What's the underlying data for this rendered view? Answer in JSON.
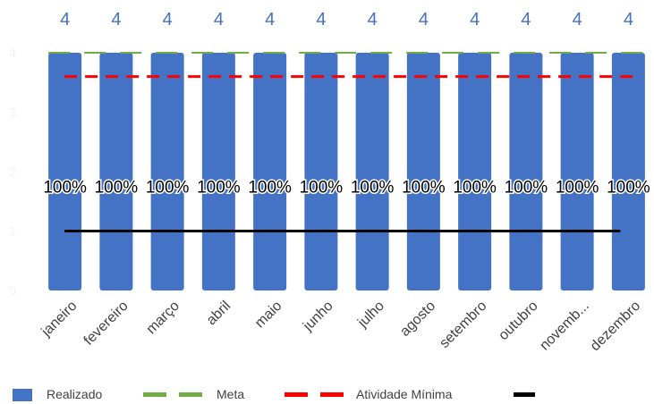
{
  "chart_data": {
    "type": "bar",
    "categories": [
      "janeiro",
      "fevereiro",
      "março",
      "abril",
      "maio",
      "junho",
      "julho",
      "agosto",
      "setembro",
      "outubro",
      "novemb...",
      "dezembro"
    ],
    "series": [
      {
        "name": "Realizado",
        "kind": "bar",
        "color": "#4472C4",
        "values": [
          4,
          4,
          4,
          4,
          4,
          4,
          4,
          4,
          4,
          4,
          4,
          4
        ]
      },
      {
        "name": "Meta",
        "kind": "line-dashed",
        "color": "#70AD47",
        "values": [
          4,
          4,
          4,
          4,
          4,
          4,
          4,
          4,
          4,
          4,
          4,
          4
        ]
      },
      {
        "name": "Atividade Mínima",
        "kind": "line-dashed",
        "color": "#FF0000",
        "values": [
          3.6,
          3.6,
          3.6,
          3.6,
          3.6,
          3.6,
          3.6,
          3.6,
          3.6,
          3.6,
          3.6,
          3.6
        ]
      },
      {
        "name": "",
        "kind": "line",
        "color": "#000000",
        "values": [
          1,
          1,
          1,
          1,
          1,
          1,
          1,
          1,
          1,
          1,
          1,
          1
        ]
      }
    ],
    "top_labels": [
      "4",
      "4",
      "4",
      "4",
      "4",
      "4",
      "4",
      "4",
      "4",
      "4",
      "4",
      "4"
    ],
    "percent_labels": [
      "100%",
      "100%",
      "100%",
      "100%",
      "100%",
      "100%",
      "100%",
      "100%",
      "100%",
      "100%",
      "100%",
      "100%"
    ],
    "percent_label_level": 1.65,
    "y_ticks": [
      "0",
      "1",
      "2",
      "3",
      "4"
    ],
    "ylim": [
      0,
      4
    ],
    "grid": false,
    "legend_position": "bottom",
    "colors": {
      "top_label": "#4472C4",
      "axis_tick": "#F2F2F2",
      "category_label": "#404040"
    }
  },
  "legend": {
    "items": [
      {
        "label": "Realizado",
        "color": "#4472C4",
        "style": "square"
      },
      {
        "label": "Meta",
        "color": "#70AD47",
        "style": "dash"
      },
      {
        "label": "Atividade Mínima",
        "color": "#FF0000",
        "style": "dash"
      },
      {
        "label": "",
        "color": "#000000",
        "style": "solid"
      }
    ]
  }
}
